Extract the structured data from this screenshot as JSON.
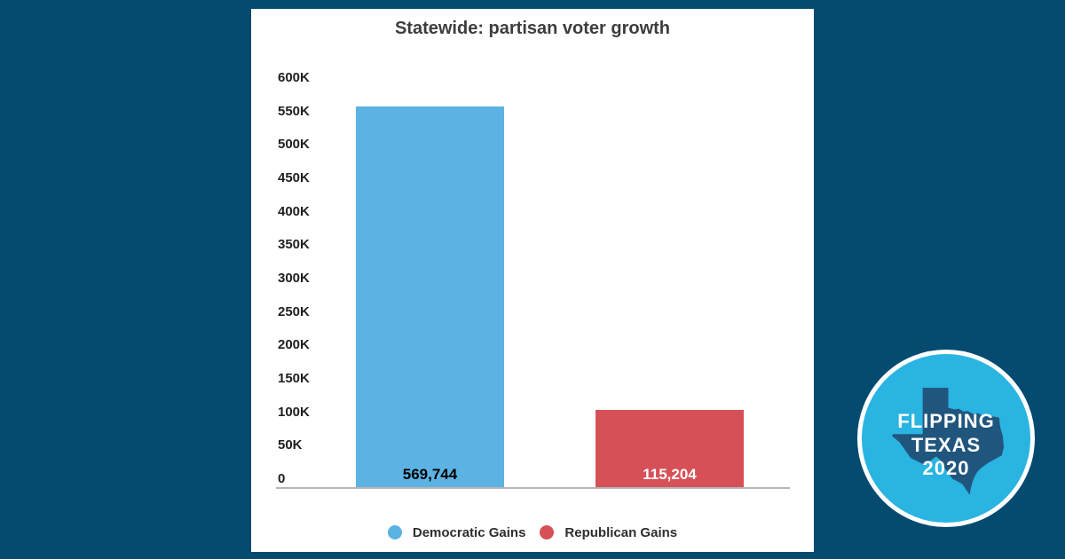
{
  "page": {
    "background_color": "#054b70"
  },
  "card": {
    "background_color": "#ffffff"
  },
  "chart_data": {
    "type": "bar",
    "title": "Statewide: partisan voter growth",
    "categories": [
      "Democratic Gains",
      "Republican Gains"
    ],
    "values": [
      569744,
      115204
    ],
    "value_labels": [
      "569,744",
      "115,204"
    ],
    "value_label_colors": [
      "#000000",
      "#ffffff"
    ],
    "colors": [
      "#5cb3e3",
      "#d65157"
    ],
    "xlabel": "",
    "ylabel": "",
    "ylim": [
      0,
      600000
    ],
    "ytick_step": 50000,
    "ytick_labels": [
      "0",
      "50K",
      "100K",
      "150K",
      "200K",
      "250K",
      "300K",
      "350K",
      "400K",
      "450K",
      "500K",
      "550K",
      "600K"
    ],
    "grid": false,
    "legend": [
      "Democratic Gains",
      "Republican Gains"
    ],
    "legend_position": "bottom"
  },
  "badge": {
    "line1": "FLIPPING",
    "line2": "TEXAS",
    "line3": "2020",
    "circle_color": "#29b4e2",
    "ring_color": "#ffffff",
    "texas_color": "#20567d",
    "text_color": "#ffffff"
  }
}
